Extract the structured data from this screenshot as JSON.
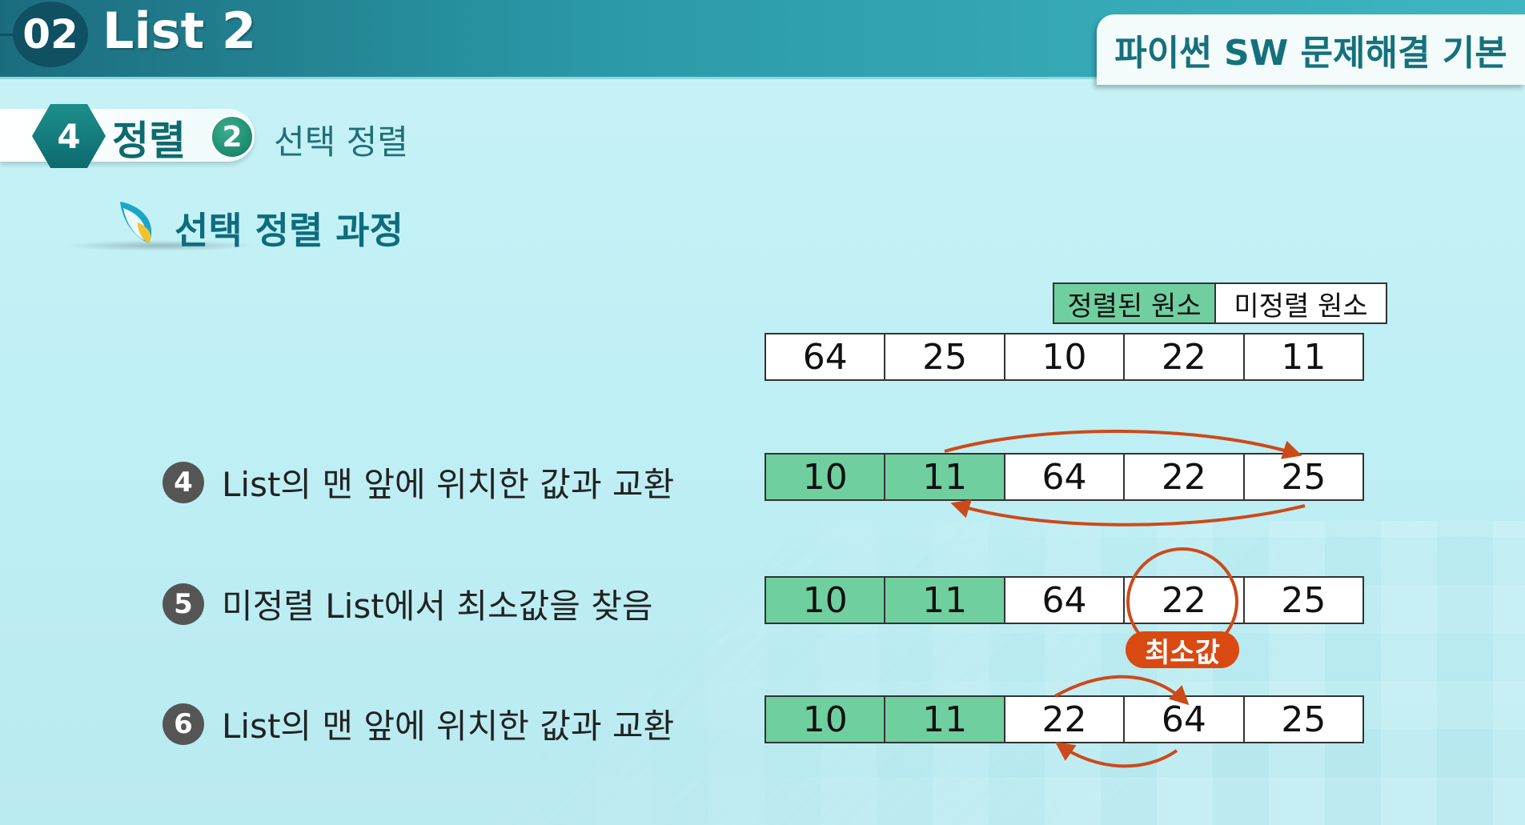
{
  "header": {
    "chapter_number": "02",
    "chapter_title": "List 2",
    "course_title": "파이썬 SW 문제해결 기본"
  },
  "section": {
    "number": "4",
    "label": "정렬",
    "sub_number": "2",
    "sub_label": "선택 정렬"
  },
  "topic": {
    "title": "선택 정렬 과정"
  },
  "legend": {
    "sorted": "정렬된 원소",
    "unsorted": "미정렬 원소"
  },
  "colors": {
    "sorted": "#6fcf9f",
    "arrow": "#cc4a1a",
    "badge": "#d84a12"
  },
  "arrays": [
    {
      "values": [
        "64",
        "25",
        "10",
        "22",
        "11"
      ],
      "sorted_count": 0
    },
    {
      "values": [
        "10",
        "11",
        "64",
        "22",
        "25"
      ],
      "sorted_count": 2
    },
    {
      "values": [
        "10",
        "11",
        "64",
        "22",
        "25"
      ],
      "sorted_count": 2
    },
    {
      "values": [
        "10",
        "11",
        "22",
        "64",
        "25"
      ],
      "sorted_count": 2
    }
  ],
  "steps": [
    {
      "number": "4",
      "text": "List의 맨 앞에 위치한 값과 교환"
    },
    {
      "number": "5",
      "text": "미정렬 List에서 최소값을 찾음"
    },
    {
      "number": "6",
      "text": "List의 맨 앞에 위치한 값과 교환"
    }
  ],
  "min_badge": "최소값"
}
